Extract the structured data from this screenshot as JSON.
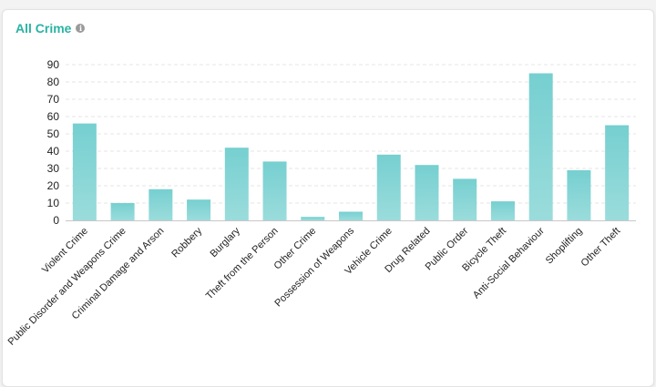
{
  "card": {
    "title": "All Crime",
    "info_icon": "info-icon"
  },
  "colors": {
    "title": "#2ab3a3",
    "bar_top": "#76cfd0",
    "bar_bottom": "#9bdcdc",
    "grid": "#e4e4e4",
    "axis": "#c8c8c8"
  },
  "chart_data": {
    "type": "bar",
    "title": "All Crime",
    "xlabel": "",
    "ylabel": "",
    "ylim": [
      0,
      90
    ],
    "yticks": [
      0,
      10,
      20,
      30,
      40,
      50,
      60,
      70,
      80,
      90
    ],
    "grid": true,
    "legend": "none",
    "categories": [
      "Violent Crime",
      "Public Disorder and Weapons Crime",
      "Criminal Damage and Arson",
      "Robbery",
      "Burglary",
      "Theft from the Person",
      "Other Crime",
      "Possession of Weapons",
      "Vehicle Crime",
      "Drug Related",
      "Public Order",
      "Bicycle Theft",
      "Anti-Social Behaviour",
      "Shoplifting",
      "Other Theft"
    ],
    "values": [
      56,
      10,
      18,
      12,
      42,
      34,
      2,
      5,
      38,
      32,
      24,
      11,
      85,
      29,
      55
    ]
  }
}
